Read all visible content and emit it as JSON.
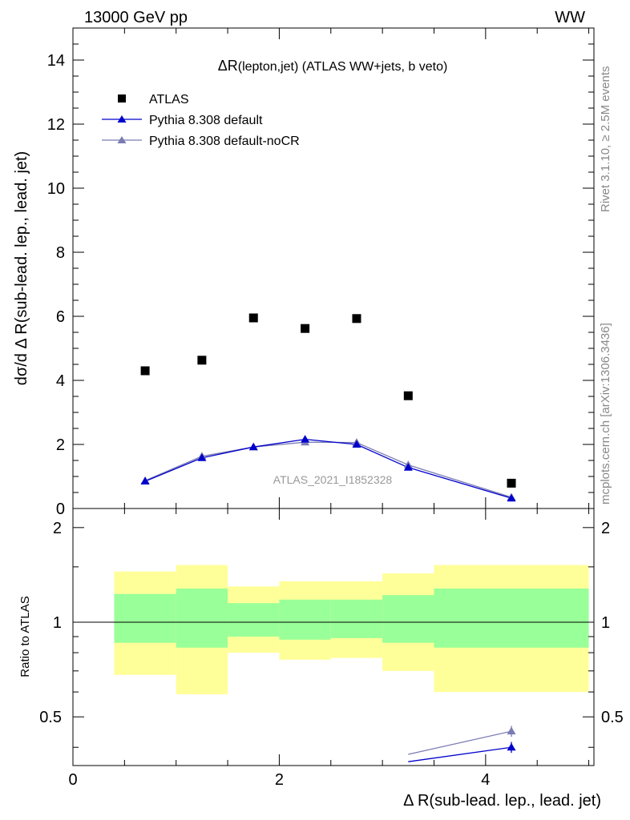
{
  "header": {
    "left": "13000 GeV pp",
    "right": "WW"
  },
  "side": {
    "rivet": "Rivet 3.1.10, ≥ 2.5M events",
    "mcplots": "mcplots.cern.ch [arXiv:1306.3436]"
  },
  "colors": {
    "atlas": "#000000",
    "default": "#0000cc",
    "nocr": "#7b7bb4",
    "band_green": "#99ff99",
    "band_yellow": "#ffff99"
  },
  "chart_data": [
    {
      "type": "scatter",
      "title_main": "ΔR",
      "title_small": "(lepton,jet)",
      "title_rest": " (ATLAS WW+jets, b veto)",
      "watermark": "ATLAS_2021_I1852328",
      "ylabel": "dσ/d Δ R(sub-lead. lep., lead. jet)",
      "xlim": [
        0,
        5.05
      ],
      "ylim": [
        0,
        15
      ],
      "yticks": [
        0,
        2,
        4,
        6,
        8,
        10,
        12,
        14
      ],
      "ytick_labels": [
        "0",
        "2",
        "4",
        "6",
        "8",
        "10",
        "12",
        "14"
      ],
      "legend": [
        "ATLAS",
        "Pythia 8.308 default",
        "Pythia 8.308 default-noCR"
      ],
      "series": [
        {
          "name": "ATLAS",
          "x": [
            0.7,
            1.25,
            1.75,
            2.25,
            2.75,
            3.25,
            4.25
          ],
          "y": [
            4.3,
            4.63,
            5.95,
            5.62,
            5.93,
            3.52,
            0.79
          ]
        },
        {
          "name": "Pythia 8.308 default",
          "x": [
            0.7,
            1.25,
            1.75,
            2.25,
            2.75,
            3.25,
            4.25
          ],
          "y": [
            0.85,
            1.58,
            1.92,
            2.16,
            2.0,
            1.28,
            0.32
          ]
        },
        {
          "name": "Pythia 8.308 default-noCR",
          "x": [
            0.7,
            1.25,
            1.75,
            2.25,
            2.75,
            3.25,
            4.25
          ],
          "y": [
            0.87,
            1.63,
            1.92,
            2.07,
            2.06,
            1.36,
            0.35
          ]
        }
      ]
    },
    {
      "type": "line",
      "ylabel": "Ratio to ATLAS",
      "xlabel": "Δ R(sub-lead. lep., lead. jet)",
      "xlim": [
        0,
        5.05
      ],
      "ylim": [
        0.35,
        2.3
      ],
      "log_y": true,
      "xticks": [
        0,
        2,
        4
      ],
      "xtick_labels": [
        "0",
        "2",
        "4"
      ],
      "yticks": [
        0.5,
        1,
        2
      ],
      "ytick_labels": [
        "0.5",
        "1",
        "2"
      ],
      "bins": [
        {
          "lo": 0.4,
          "hi": 1.0,
          "green": [
            0.86,
            1.23
          ],
          "yellow": [
            0.68,
            1.45
          ]
        },
        {
          "lo": 1.0,
          "hi": 1.5,
          "green": [
            0.83,
            1.28
          ],
          "yellow": [
            0.59,
            1.52
          ]
        },
        {
          "lo": 1.5,
          "hi": 2.0,
          "green": [
            0.9,
            1.15
          ],
          "yellow": [
            0.8,
            1.3
          ]
        },
        {
          "lo": 2.0,
          "hi": 2.5,
          "green": [
            0.88,
            1.18
          ],
          "yellow": [
            0.76,
            1.35
          ]
        },
        {
          "lo": 2.5,
          "hi": 3.0,
          "green": [
            0.89,
            1.18
          ],
          "yellow": [
            0.77,
            1.35
          ]
        },
        {
          "lo": 3.0,
          "hi": 3.5,
          "green": [
            0.86,
            1.22
          ],
          "yellow": [
            0.7,
            1.43
          ]
        },
        {
          "lo": 3.5,
          "hi": 5.0,
          "green": [
            0.83,
            1.28
          ],
          "yellow": [
            0.6,
            1.52
          ]
        }
      ],
      "series": [
        {
          "name": "Pythia 8.308 default",
          "x": [
            3.25,
            4.25
          ],
          "y": [
            0.36,
            0.4
          ]
        },
        {
          "name": "Pythia 8.308 default-noCR",
          "x": [
            3.25,
            4.25
          ],
          "y": [
            0.38,
            0.45
          ]
        }
      ]
    }
  ]
}
